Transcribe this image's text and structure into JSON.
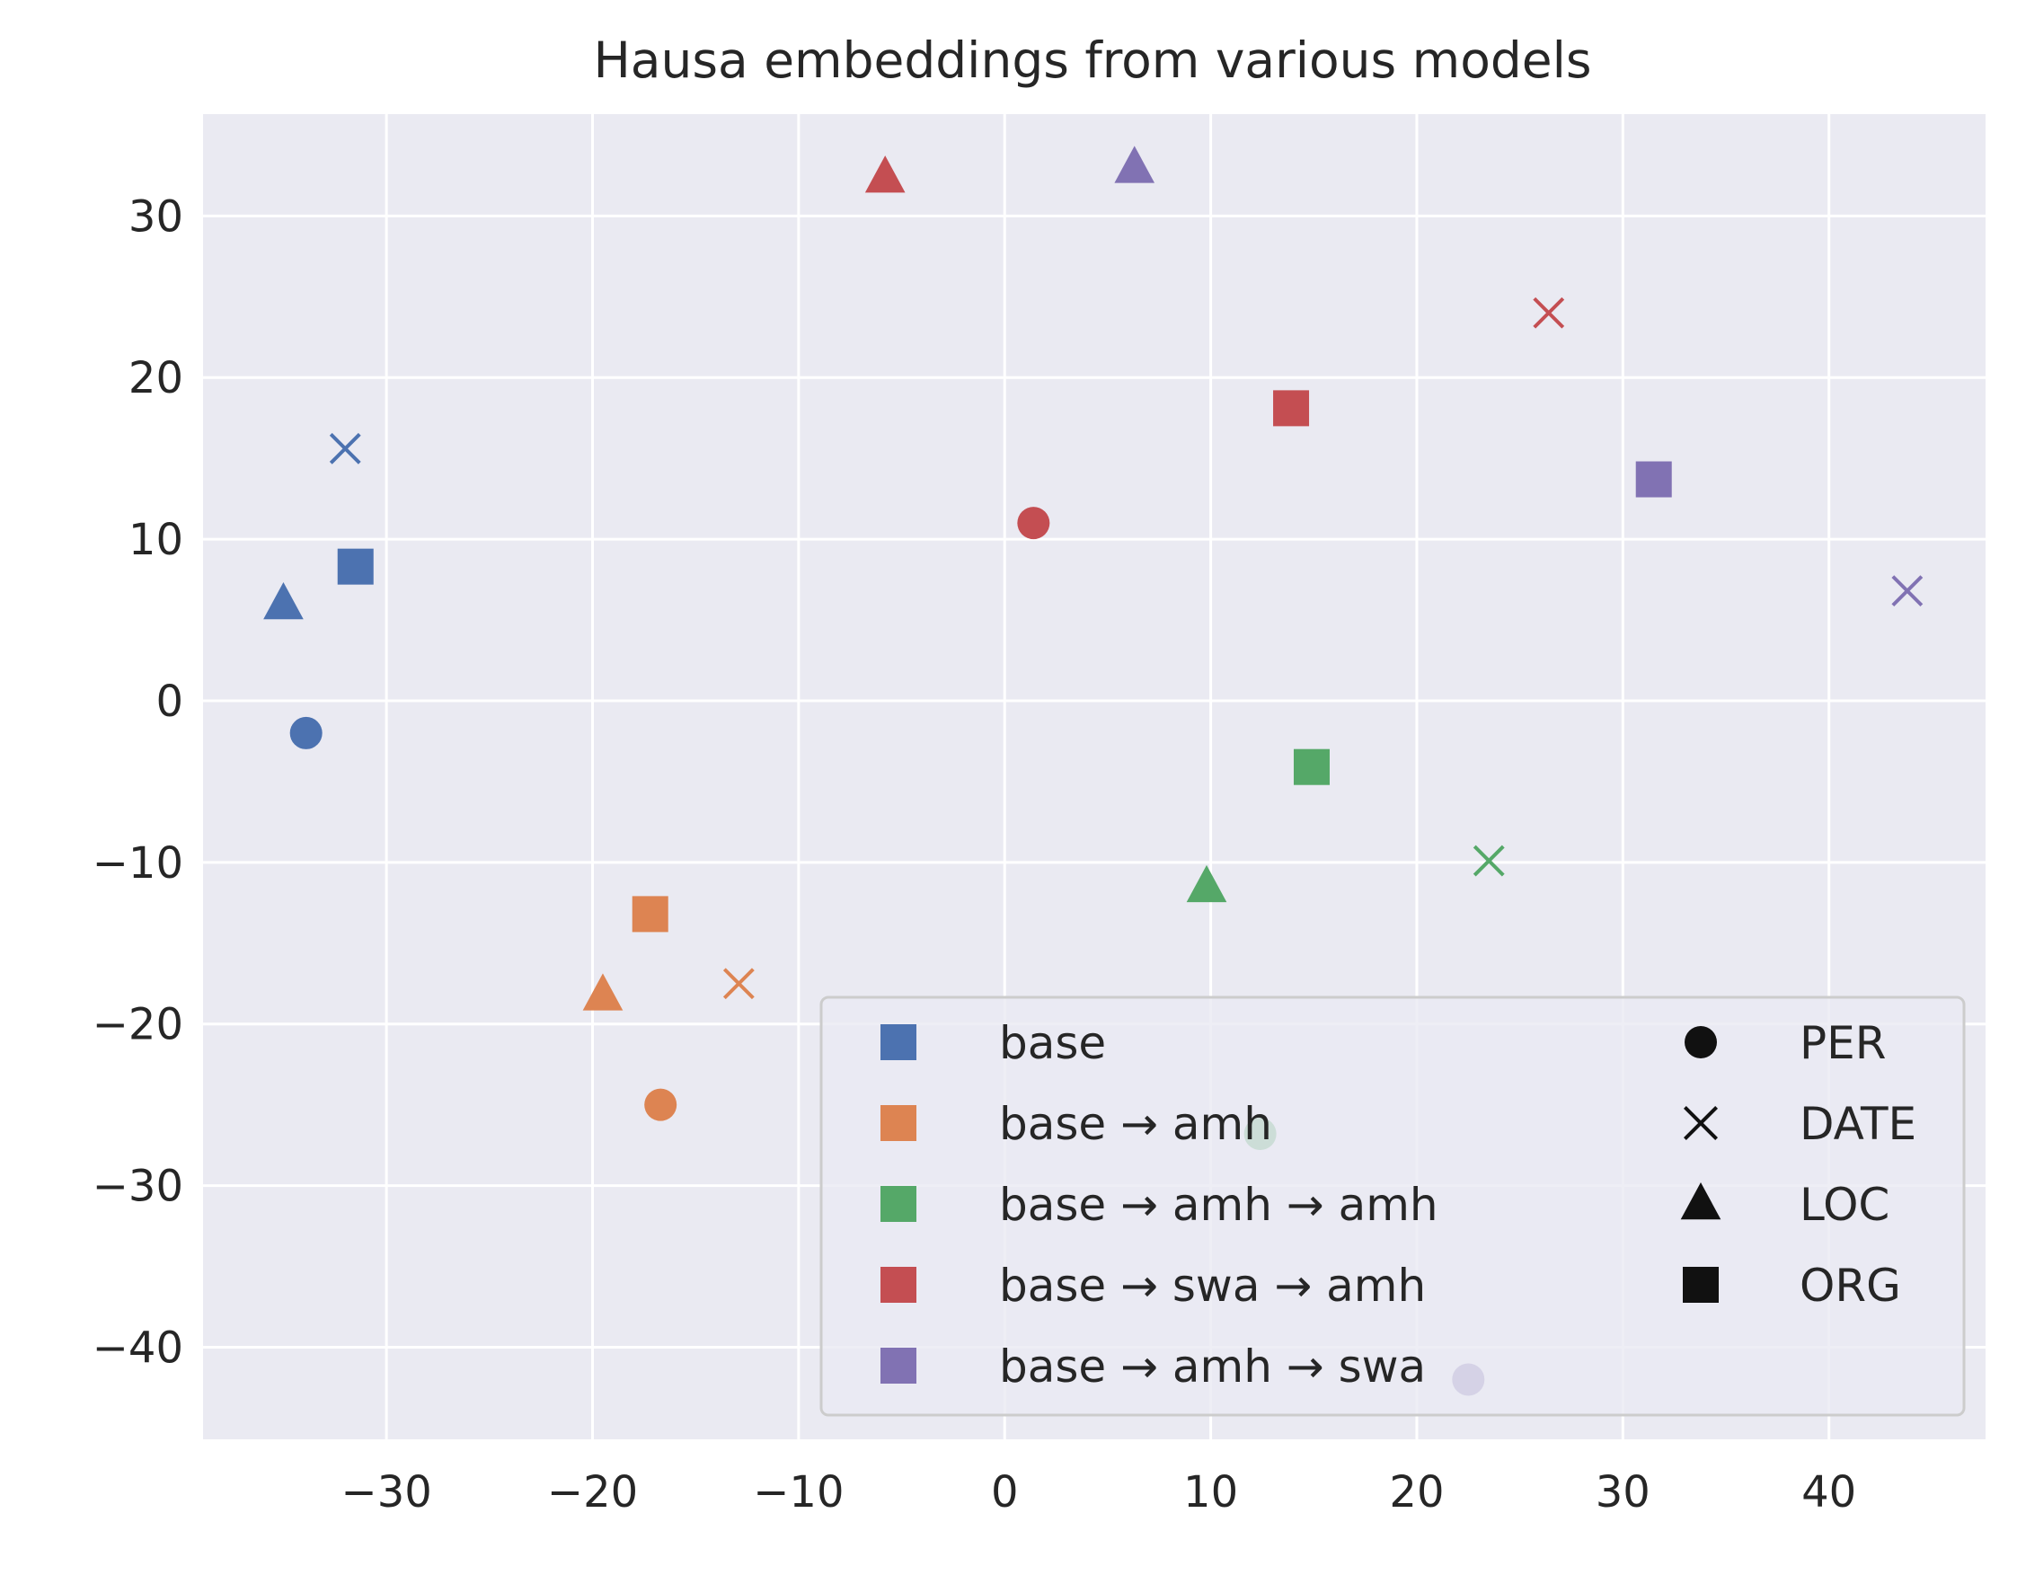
{
  "chart_data": {
    "type": "scatter",
    "title": "Hausa embeddings from various models",
    "xlabel": "",
    "ylabel": "",
    "xlim": [
      -38.9,
      47.6
    ],
    "ylim": [
      -45.7,
      36.3
    ],
    "xticks": [
      -30,
      -20,
      -10,
      0,
      10,
      20,
      30,
      40
    ],
    "yticks": [
      30,
      20,
      10,
      0,
      -10,
      -20,
      -30,
      -40
    ],
    "grid": true,
    "background": "#eaeaf2",
    "legend_position": "lower-right",
    "series": [
      {
        "name": "base",
        "color": "#4c72b0",
        "points": [
          {
            "category": "PER",
            "x": -33.9,
            "y": -2.0
          },
          {
            "category": "DATE",
            "x": -32.0,
            "y": 15.6
          },
          {
            "category": "LOC",
            "x": -35.0,
            "y": 6.0
          },
          {
            "category": "ORG",
            "x": -31.5,
            "y": 8.3
          }
        ]
      },
      {
        "name": "base → amh",
        "color": "#dd8452",
        "points": [
          {
            "category": "PER",
            "x": -16.7,
            "y": -25.0
          },
          {
            "category": "DATE",
            "x": -12.9,
            "y": -17.5
          },
          {
            "category": "LOC",
            "x": -19.5,
            "y": -18.2
          },
          {
            "category": "ORG",
            "x": -17.2,
            "y": -13.2
          }
        ]
      },
      {
        "name": "base → amh → amh",
        "color": "#55a868",
        "points": [
          {
            "category": "PER",
            "x": 12.4,
            "y": -26.8
          },
          {
            "category": "DATE",
            "x": 23.5,
            "y": -9.9
          },
          {
            "category": "LOC",
            "x": 9.8,
            "y": -11.5
          },
          {
            "category": "ORG",
            "x": 14.9,
            "y": -4.1
          }
        ]
      },
      {
        "name": "base → swa → amh",
        "color": "#c44e52",
        "points": [
          {
            "category": "PER",
            "x": 1.4,
            "y": 11.0
          },
          {
            "category": "DATE",
            "x": 26.4,
            "y": 24.0
          },
          {
            "category": "LOC",
            "x": -5.8,
            "y": 32.4
          },
          {
            "category": "ORG",
            "x": 13.9,
            "y": 18.1
          }
        ]
      },
      {
        "name": "base → amh → swa",
        "color": "#8172b3",
        "points": [
          {
            "category": "PER",
            "x": 22.5,
            "y": -42.0
          },
          {
            "category": "DATE",
            "x": 43.8,
            "y": 6.8
          },
          {
            "category": "LOC",
            "x": 6.3,
            "y": 33.0
          },
          {
            "category": "ORG",
            "x": 31.5,
            "y": 13.7
          }
        ]
      }
    ],
    "marker_legend": [
      {
        "category": "PER",
        "marker": "circle"
      },
      {
        "category": "DATE",
        "marker": "x"
      },
      {
        "category": "LOC",
        "marker": "triangle"
      },
      {
        "category": "ORG",
        "marker": "square"
      }
    ]
  }
}
